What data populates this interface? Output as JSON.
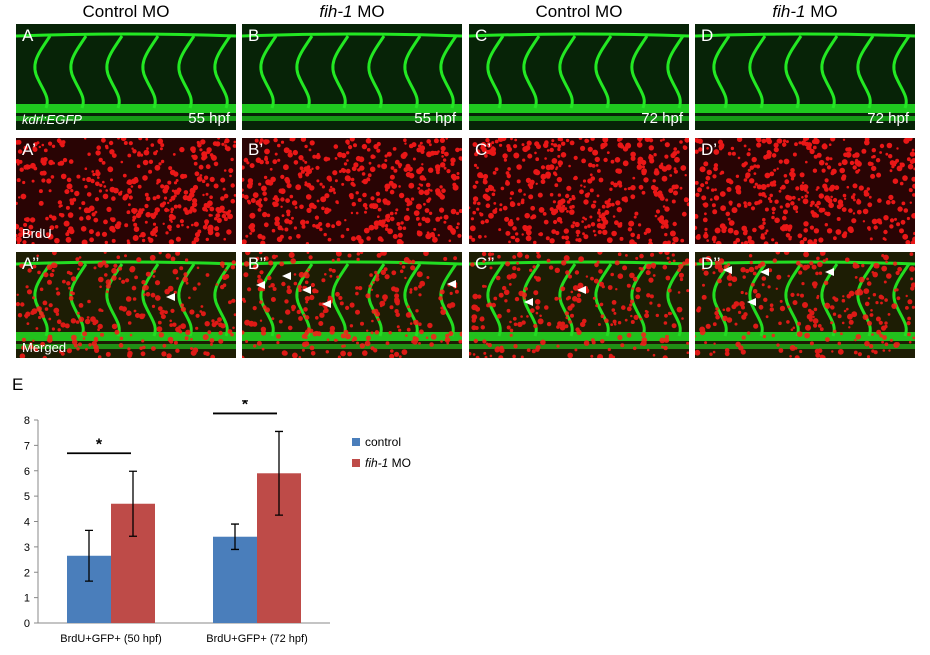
{
  "columns": [
    {
      "prefix": "Control MO",
      "italic": "",
      "suffix": ""
    },
    {
      "prefix": "",
      "italic": "fih-1",
      "suffix": " MO"
    },
    {
      "prefix": "Control MO",
      "italic": "",
      "suffix": ""
    },
    {
      "prefix": "",
      "italic": "fih-1",
      "suffix": " MO"
    }
  ],
  "rows": [
    {
      "labels": [
        "A",
        "B",
        "C",
        "D"
      ],
      "caption": "kdrl:EGFP",
      "times": [
        "55 hpf",
        "55 hpf",
        "72 hpf",
        "72 hpf"
      ]
    },
    {
      "labels": [
        "A’",
        "B’",
        "C’",
        "D’"
      ],
      "caption": "BrdU"
    },
    {
      "labels": [
        "A’’",
        "B’’",
        "C’’",
        "D’’"
      ],
      "caption": "Merged"
    }
  ],
  "panel_e_label": "E",
  "colors": {
    "control": "#4a7ebb",
    "fih": "#be4b48",
    "vessel": "#23e823",
    "nuclei": "#ff1a1a"
  },
  "chart_data": {
    "type": "bar",
    "categories": [
      "BrdU+GFP+ (50 hpf)",
      "BrdU+GFP+ (72 hpf)"
    ],
    "series": [
      {
        "name": "control",
        "values": [
          2.65,
          3.4
        ],
        "errors": [
          1.0,
          0.5
        ]
      },
      {
        "name": "MO",
        "name_italic": "fih-1",
        "values": [
          4.7,
          5.9
        ],
        "errors": [
          1.28,
          1.65
        ]
      }
    ],
    "ylim": [
      0,
      8
    ],
    "yticks": [
      0,
      1,
      2,
      3,
      4,
      5,
      6,
      7,
      8
    ],
    "significance": [
      "*",
      "*"
    ],
    "legend_position": "right"
  }
}
